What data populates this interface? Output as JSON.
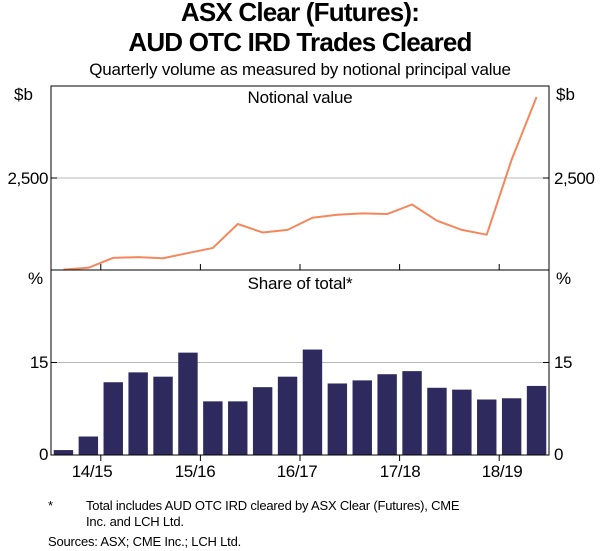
{
  "title_line1": "ASX Clear (Futures):",
  "title_line2": "AUD OTC IRD Trades Cleared",
  "subtitle": "Quarterly volume as measured by notional principal value",
  "chart_data": [
    {
      "type": "line",
      "title": "Notional value",
      "unit_left": "$b",
      "unit_right": "$b",
      "ylim": [
        0,
        5000
      ],
      "yticks": [
        0,
        2500
      ],
      "ytick_labels": [
        "",
        "2,500"
      ],
      "series": [
        {
          "name": "Notional value",
          "color": "#f4875b",
          "values": [
            10,
            60,
            330,
            350,
            320,
            460,
            600,
            1250,
            1020,
            1090,
            1420,
            1500,
            1540,
            1520,
            1780,
            1340,
            1090,
            960,
            3000,
            4700
          ]
        }
      ]
    },
    {
      "type": "bar",
      "title": "Share of total*",
      "unit_left": "%",
      "unit_right": "%",
      "ylim": [
        0,
        30
      ],
      "yticks": [
        0,
        15
      ],
      "ytick_labels": [
        "0",
        "15"
      ],
      "series": [
        {
          "name": "Share of total",
          "color": "#2e2a5e",
          "values": [
            0.8,
            3.0,
            11.8,
            13.4,
            12.7,
            16.6,
            8.7,
            8.7,
            11.0,
            12.7,
            17.1,
            11.6,
            12.1,
            13.1,
            13.6,
            10.9,
            10.6,
            9.0,
            9.2,
            11.2
          ]
        }
      ]
    }
  ],
  "x_categories": [
    "",
    "14/15",
    "",
    "",
    "",
    "15/16",
    "",
    "",
    "",
    "16/17",
    "",
    "",
    "",
    "17/18",
    "",
    "",
    "",
    "18/19",
    "",
    ""
  ],
  "x_tick_labels": [
    "14/15",
    "15/16",
    "16/17",
    "17/18",
    "18/19"
  ],
  "colors": {
    "line": "#f4875b",
    "bar": "#2e2a5e",
    "grid": "#b8b8b8",
    "axis": "#000000"
  },
  "footnote_marker": "*",
  "footnote_text_line1": "Total includes AUD OTC IRD cleared by ASX Clear (Futures), CME",
  "footnote_text_line2": "Inc. and LCH Ltd.",
  "sources": "Sources: ASX; CME Inc.; LCH Ltd."
}
